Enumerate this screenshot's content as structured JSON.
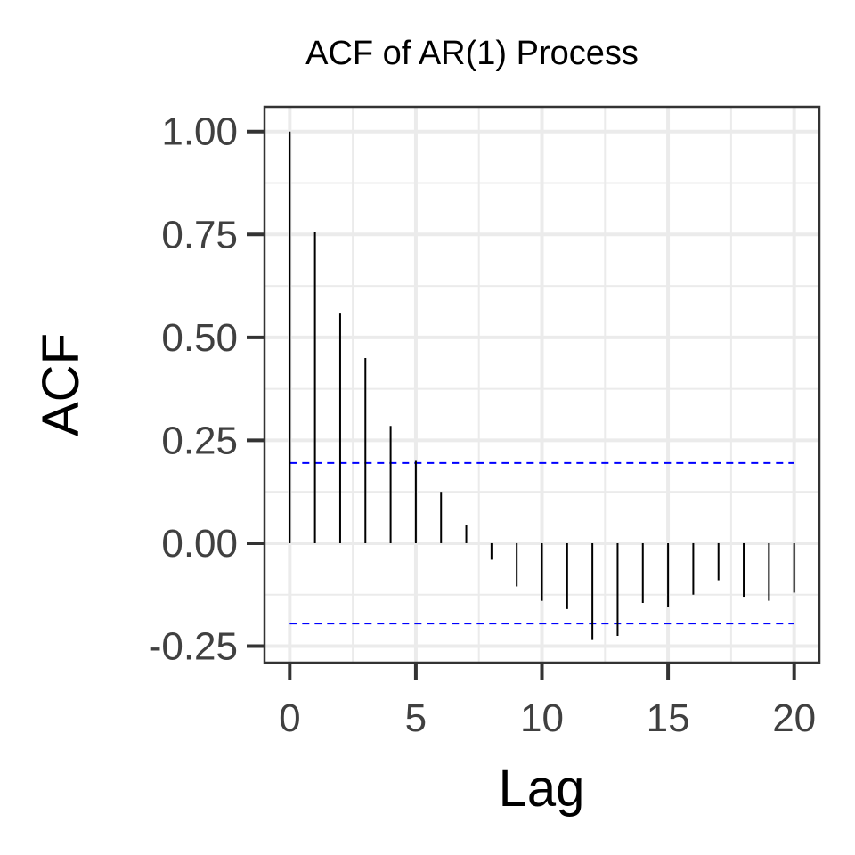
{
  "chart_data": {
    "type": "bar",
    "title": "ACF of AR(1) Process",
    "xlabel": "Lag",
    "ylabel": "ACF",
    "xlim": [
      -1,
      21
    ],
    "ylim": [
      -0.29,
      1.06
    ],
    "x_ticks": [
      0,
      5,
      10,
      15,
      20
    ],
    "x_tick_labels": [
      "0",
      "5",
      "10",
      "15",
      "20"
    ],
    "y_ticks": [
      -0.25,
      0,
      0.25,
      0.5,
      0.75,
      1.0
    ],
    "y_tick_labels": [
      "-0.25",
      "0.00",
      "0.25",
      "0.50",
      "0.75",
      "1.00"
    ],
    "grid": true,
    "lags": [
      0,
      1,
      2,
      3,
      4,
      5,
      6,
      7,
      8,
      9,
      10,
      11,
      12,
      13,
      14,
      15,
      16,
      17,
      18,
      19,
      20
    ],
    "values": [
      1.0,
      0.755,
      0.56,
      0.45,
      0.285,
      0.2,
      0.125,
      0.045,
      -0.04,
      -0.105,
      -0.14,
      -0.16,
      -0.235,
      -0.225,
      -0.145,
      -0.155,
      -0.125,
      -0.09,
      -0.13,
      -0.14,
      -0.12
    ],
    "confidence_bounds": [
      0.195,
      -0.195
    ],
    "colors": {
      "bars": "#000000",
      "bounds": "#0000ff",
      "grid": "#ebebeb",
      "panel_border": "#333333"
    }
  }
}
